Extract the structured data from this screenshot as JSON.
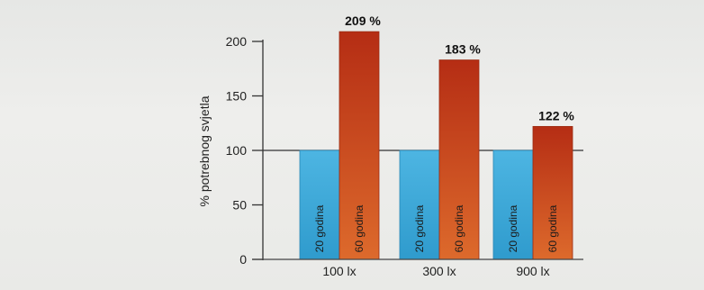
{
  "chart_data": {
    "type": "bar",
    "ylabel": "% potrebnog svjetla",
    "xlabel": "",
    "ylim": [
      0,
      200
    ],
    "yticks": [
      0,
      50,
      100,
      150,
      200
    ],
    "reference_line": 100,
    "categories": [
      "100 lx",
      "300 lx",
      "900 lx"
    ],
    "series": [
      {
        "name": "20 godina",
        "color": "#3fa9d8",
        "values": [
          100,
          100,
          100
        ]
      },
      {
        "name": "60 godina",
        "color": "#c84a22",
        "values": [
          209,
          183,
          122
        ]
      }
    ],
    "value_labels": [
      "209 %",
      "183 %",
      "122 %"
    ],
    "grid": false,
    "legend": "none (series names printed inside bars)"
  }
}
